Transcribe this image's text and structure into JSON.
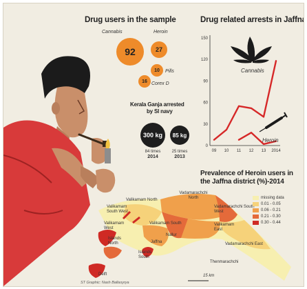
{
  "sample": {
    "title": "Drug users in the sample",
    "bubbles": [
      {
        "label": "Cannabis",
        "value": 92
      },
      {
        "label": "Heroin",
        "value": 27
      },
      {
        "label": "Pills",
        "value": 10
      },
      {
        "label": "Corex D",
        "value": 16
      }
    ]
  },
  "kerala": {
    "title_line1": "Kerala Ganja arrested",
    "title_line2": "by Sl navy",
    "items": [
      {
        "amount": "300 kg",
        "times": "84 times",
        "year": "2014"
      },
      {
        "amount": "85 kg",
        "times": "25 times",
        "year": "2013"
      }
    ]
  },
  "chart_data": {
    "type": "line",
    "title": "Drug related arrests in Jaffna",
    "x": [
      "09",
      "10",
      "11",
      "12",
      "13",
      "2014"
    ],
    "ylim": [
      0,
      150
    ],
    "yticks": [
      0,
      30,
      60,
      90,
      120,
      150
    ],
    "series": [
      {
        "name": "Cannabis",
        "values": [
          8,
          22,
          55,
          52,
          40,
          118
        ]
      },
      {
        "name": "Heroin",
        "values": [
          null,
          null,
          8,
          18,
          2,
          6
        ]
      }
    ],
    "grid": false
  },
  "map": {
    "title_line1": "Prevalence of Heroin users in",
    "title_line2": "the Jaffna district (%)-2014",
    "regions": [
      {
        "name": "Vadamarachchi North"
      },
      {
        "name": "Valikamam North"
      },
      {
        "name": "Vadamarachchi South West"
      },
      {
        "name": "Valikamam South West"
      },
      {
        "name": "Valikamam West"
      },
      {
        "name": "Valikamam South"
      },
      {
        "name": "Valikamam East"
      },
      {
        "name": "Jaffna"
      },
      {
        "name": "Nallur"
      },
      {
        "name": "Islands North"
      },
      {
        "name": "Islands South"
      },
      {
        "name": "Delft"
      },
      {
        "name": "Vadamarachchi East"
      },
      {
        "name": "Thenmarachchi"
      }
    ],
    "legend": [
      {
        "label": "missing data",
        "color": "#f7efb0"
      },
      {
        "label": "0.01 - 0.05",
        "color": "#f6d27a"
      },
      {
        "label": "0.06 - 0.21",
        "color": "#f0a04b"
      },
      {
        "label": "0.21 - 0.30",
        "color": "#e46a3a"
      },
      {
        "label": "0.30 - 0.44",
        "color": "#cf2a24"
      }
    ],
    "scale": "15 km"
  },
  "credit": "ST Graphic: Nash Ballasyrya",
  "colors": {
    "accent_red": "#d62828",
    "bubble_orange": "#ee8b2a",
    "dark": "#1e1e1e"
  }
}
